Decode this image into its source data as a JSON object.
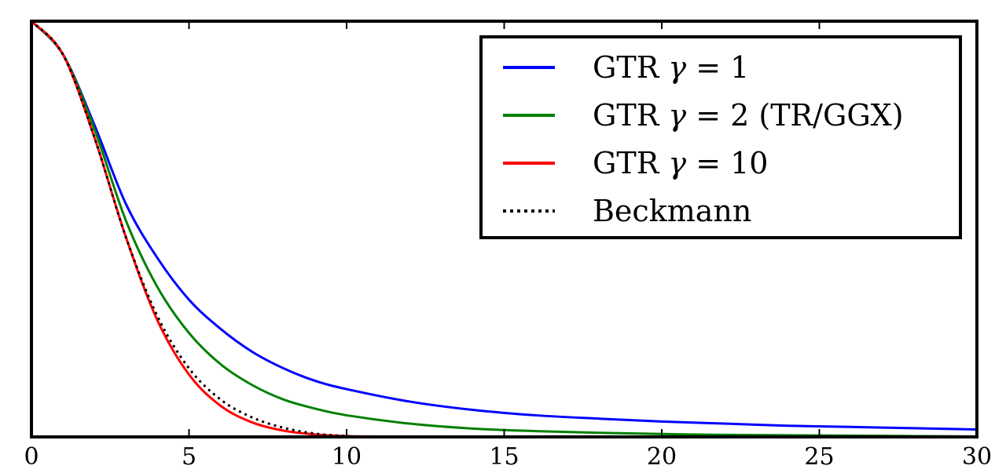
{
  "chart_data": {
    "type": "line",
    "title": "",
    "xlabel": "",
    "ylabel": "",
    "xlim": [
      0,
      30
    ],
    "ylim": [
      0,
      1
    ],
    "grid": false,
    "legend_position": "top-right",
    "x_ticks": [
      0,
      5,
      10,
      15,
      20,
      25,
      30
    ],
    "x_tick_labels": [
      "0",
      "5",
      "10",
      "15",
      "20",
      "25",
      "30"
    ],
    "series": [
      {
        "name": "GTR γ = 1",
        "label_prefix": "GTR ",
        "label_symbol": "γ",
        "label_suffix": " = 1",
        "color": "#0000ff",
        "style": "solid",
        "x": [
          0,
          1,
          2,
          3,
          4,
          5,
          6,
          7,
          8,
          9,
          10,
          12,
          14,
          16,
          18,
          20,
          22,
          24,
          26,
          28,
          30
        ],
        "y": [
          1.0,
          0.92,
          0.75,
          0.56,
          0.43,
          0.33,
          0.26,
          0.205,
          0.165,
          0.135,
          0.115,
          0.085,
          0.065,
          0.052,
          0.044,
          0.037,
          0.032,
          0.027,
          0.024,
          0.021,
          0.018
        ]
      },
      {
        "name": "GTR γ = 2 (TR/GGX)",
        "label_prefix": "GTR ",
        "label_symbol": "γ",
        "label_suffix": " = 2 (TR/GGX)",
        "color": "#008000",
        "style": "solid",
        "x": [
          0,
          1,
          2,
          3,
          4,
          5,
          6,
          7,
          8,
          9,
          10,
          12,
          14,
          16,
          18,
          20,
          22,
          24,
          26,
          28,
          30
        ],
        "y": [
          1.0,
          0.92,
          0.74,
          0.52,
          0.36,
          0.25,
          0.175,
          0.125,
          0.09,
          0.068,
          0.052,
          0.032,
          0.02,
          0.014,
          0.01,
          0.007,
          0.005,
          0.004,
          0.003,
          0.002,
          0.001
        ]
      },
      {
        "name": "GTR γ = 10",
        "label_prefix": "GTR ",
        "label_symbol": "γ",
        "label_suffix": " = 10",
        "color": "#ff0000",
        "style": "solid",
        "x": [
          0,
          1,
          2,
          3,
          4,
          5,
          6,
          7,
          8,
          9,
          10,
          11,
          12,
          14,
          16,
          20,
          25,
          30
        ],
        "y": [
          1.0,
          0.92,
          0.72,
          0.48,
          0.28,
          0.15,
          0.075,
          0.035,
          0.015,
          0.006,
          0.002,
          0.001,
          0.0,
          0.0,
          0.0,
          0.0,
          0.0,
          0.0
        ]
      },
      {
        "name": "Beckmann",
        "label_prefix": "Beckmann",
        "label_symbol": "",
        "label_suffix": "",
        "color": "#000000",
        "style": "dotted",
        "x": [
          0,
          1,
          2,
          3,
          4,
          5,
          6,
          7,
          8,
          9,
          10,
          11,
          12,
          14,
          16,
          20,
          25,
          30
        ],
        "y": [
          1.0,
          0.92,
          0.72,
          0.48,
          0.29,
          0.165,
          0.09,
          0.047,
          0.022,
          0.008,
          0.002,
          0.0,
          0.0,
          0.0,
          0.0,
          0.0,
          0.0,
          0.0
        ]
      }
    ]
  }
}
